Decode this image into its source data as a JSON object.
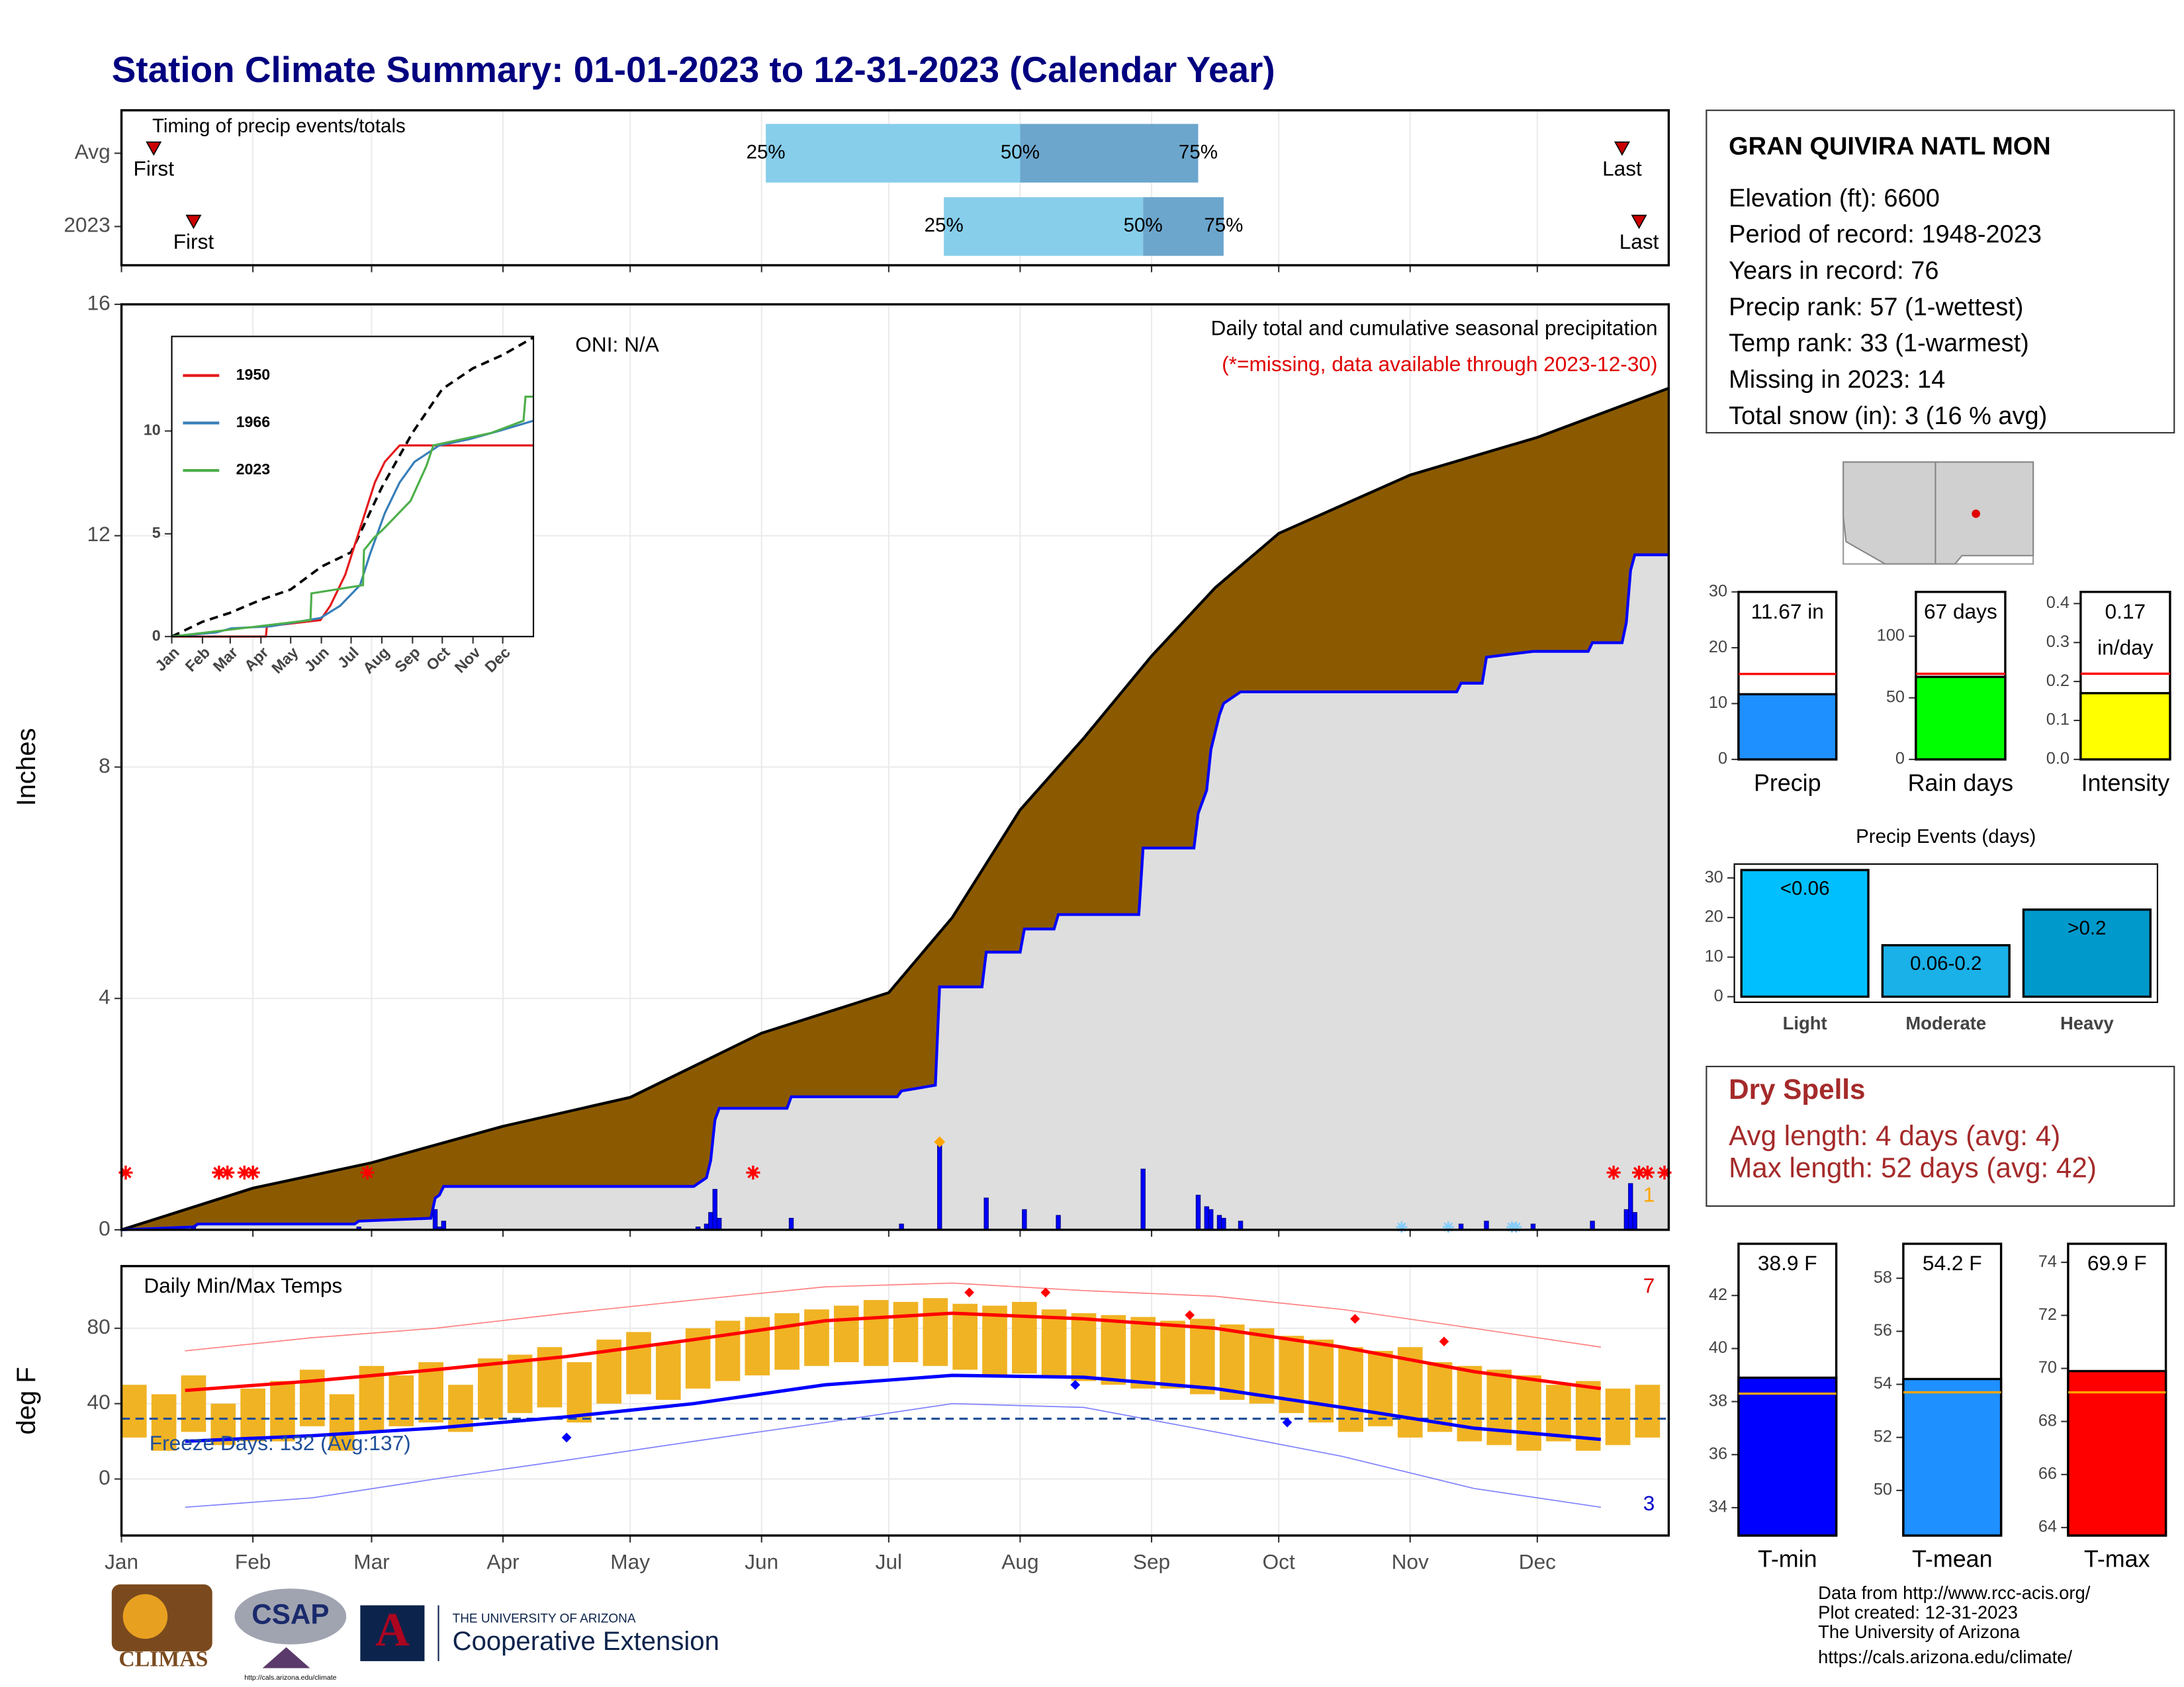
{
  "title": "Station Climate Summary: 01-01-2023 to 12-31-2023 (Calendar Year)",
  "station": {
    "name": "GRAN QUIVIRA NATL MON",
    "lines": [
      "Elevation (ft): 6600",
      "Period of record: 1948-2023",
      "Years in record: 76",
      "Precip rank: 57 (1-wettest)",
      "Temp rank: 33 (1-warmest)",
      "Missing in 2023: 14",
      "Total snow (in): 3 (16 % avg)"
    ]
  },
  "dry_spells": {
    "title": "Dry Spells",
    "lines": [
      "Avg length: 4 days (avg: 4)",
      "Max length: 52 days (avg: 42)"
    ]
  },
  "credits": [
    "Data from http://www.rcc-acis.org/",
    "Plot created: 12-31-2023",
    "The University of Arizona",
    "https://cals.arizona.edu/climate/"
  ],
  "logos": {
    "climas": "CLIMAS",
    "csap": "CSAP",
    "csap_url": "http://cals.arizona.edu/climate",
    "ua_mark": "A",
    "ua": "THE UNIVERSITY OF ARIZONA",
    "coop": "Cooperative Extension"
  },
  "chart_data": [
    {
      "type": "timeline",
      "title": "Timing of precip events/totals",
      "categories": [
        "Avg",
        "2023"
      ],
      "first": [
        7.6,
        17
      ],
      "p25": [
        152,
        194
      ],
      "p50": [
        212,
        241
      ],
      "p75": [
        254,
        260
      ],
      "last": [
        354,
        358
      ],
      "labels": {
        "first": "First",
        "last": "Last",
        "p25": "25%",
        "p50": "50%",
        "p75": "75%"
      },
      "light_color": "#87ceeb",
      "dark_color": "#6ca6cd",
      "marker_color": "#cc0000",
      "xlim": [
        0,
        365
      ],
      "xticks": [
        0,
        31,
        59,
        90,
        120,
        151,
        181,
        212,
        243,
        273,
        304,
        334
      ],
      "grid": true
    },
    {
      "type": "area",
      "title": "Daily total and cumulative seasonal precipitation",
      "subtitle": "(*=missing, data available through 2023-12-30)",
      "annotation": "ONI: N/A",
      "corner_label": "1",
      "ylabel": "Inches",
      "xlim": [
        0,
        365
      ],
      "xticks": [
        0,
        31,
        59,
        90,
        120,
        151,
        181,
        212,
        243,
        273,
        304,
        334
      ],
      "ylim": [
        0,
        16
      ],
      "yticks": [
        0,
        4,
        8,
        12,
        16
      ],
      "grid": true,
      "average": {
        "color": "#8b5a00",
        "x": [
          0,
          31,
          59,
          90,
          120,
          151,
          181,
          196,
          212,
          227,
          243,
          258,
          273,
          304,
          334,
          365
        ],
        "values": [
          0,
          0.72,
          1.16,
          1.79,
          2.29,
          3.4,
          4.1,
          5.4,
          7.26,
          8.5,
          9.92,
          11.1,
          12.04,
          13.05,
          13.7,
          14.55
        ]
      },
      "observed": {
        "color": "#0000ff",
        "fill": "#dedede",
        "x": [
          0,
          17,
          18,
          55,
          56,
          73,
          74,
          75,
          76,
          135,
          136,
          138,
          139,
          140,
          141,
          157,
          158,
          183,
          184,
          192,
          193,
          203,
          204,
          212,
          213,
          220,
          221,
          240,
          241,
          253,
          254,
          256,
          257,
          259,
          260,
          264,
          315,
          316,
          321,
          322,
          333,
          346,
          347,
          354,
          355,
          356,
          357,
          365
        ],
        "values": [
          0,
          0.05,
          0.1,
          0.1,
          0.15,
          0.2,
          0.55,
          0.6,
          0.75,
          0.75,
          0.8,
          0.9,
          1.2,
          1.9,
          2.1,
          2.1,
          2.3,
          2.3,
          2.4,
          2.5,
          4.2,
          4.2,
          4.8,
          4.8,
          5.2,
          5.2,
          5.45,
          5.45,
          6.6,
          6.6,
          7.2,
          7.6,
          8.3,
          8.9,
          9.1,
          9.3,
          9.3,
          9.45,
          9.45,
          9.9,
          10.0,
          10.0,
          10.15,
          10.15,
          10.5,
          11.4,
          11.67,
          11.67
        ]
      },
      "daily": {
        "color": "#0000ff",
        "x": [
          17,
          56,
          74,
          75,
          76,
          136,
          138,
          139,
          140,
          141,
          158,
          184,
          193,
          204,
          213,
          221,
          241,
          254,
          256,
          257,
          259,
          260,
          264,
          316,
          322,
          333,
          347,
          355,
          356,
          357
        ],
        "values": [
          0.05,
          0.05,
          0.35,
          0.05,
          0.15,
          0.05,
          0.1,
          0.3,
          0.7,
          0.2,
          0.2,
          0.1,
          1.52,
          0.55,
          0.35,
          0.25,
          1.05,
          0.6,
          0.4,
          0.35,
          0.25,
          0.2,
          0.15,
          0.1,
          0.15,
          0.1,
          0.15,
          0.35,
          0.8,
          0.3
        ]
      },
      "record": {
        "color": "#ffa500",
        "x": [
          193
        ],
        "values": [
          1.52
        ]
      },
      "missing_x": [
        1,
        23,
        25,
        29,
        31,
        58,
        149,
        352,
        358,
        360,
        364
      ],
      "missing_color": "#ff0000",
      "snow_x": [
        302,
        313,
        328,
        329
      ],
      "snow_color": "#87cefa"
    },
    {
      "type": "line",
      "xlim": [
        0,
        365
      ],
      "ylim": [
        0,
        14.6
      ],
      "yticks": [
        0,
        5,
        10
      ],
      "xticks": [
        {
          "value": 0,
          "label": "Jan"
        },
        {
          "value": 31,
          "label": "Feb"
        },
        {
          "value": 59,
          "label": "Mar"
        },
        {
          "value": 90,
          "label": "Apr"
        },
        {
          "value": 120,
          "label": "May"
        },
        {
          "value": 151,
          "label": "Jun"
        },
        {
          "value": 181,
          "label": "Jul"
        },
        {
          "value": 212,
          "label": "Aug"
        },
        {
          "value": 243,
          "label": "Sep"
        },
        {
          "value": 273,
          "label": "Oct"
        },
        {
          "value": 304,
          "label": "Nov"
        },
        {
          "value": 334,
          "label": "Dec"
        }
      ],
      "series": [
        {
          "name": "1950",
          "color": "#e41a1c",
          "x": [
            0,
            95,
            96,
            150,
            160,
            175,
            185,
            195,
            205,
            215,
            230,
            260,
            365
          ],
          "values": [
            0,
            0,
            0.5,
            0.8,
            1.5,
            3,
            4.5,
            6,
            7.5,
            8.5,
            9.3,
            9.3,
            9.3
          ]
        },
        {
          "name": "1966",
          "color": "#377eb8",
          "x": [
            0,
            45,
            60,
            100,
            150,
            170,
            190,
            200,
            215,
            230,
            245,
            270,
            300,
            330,
            365
          ],
          "values": [
            0,
            0.2,
            0.4,
            0.5,
            0.9,
            1.5,
            2.5,
            4,
            6,
            7.5,
            8.5,
            9.3,
            9.6,
            10,
            10.5
          ]
        },
        {
          "name": "2023",
          "color": "#4daf4a",
          "x": [
            0,
            140,
            141,
            193,
            194,
            204,
            213,
            241,
            257,
            264,
            322,
            355,
            357,
            365
          ],
          "values": [
            0,
            0.8,
            2.1,
            2.5,
            4.2,
            4.8,
            5.2,
            6.6,
            8.3,
            9.3,
            9.9,
            10.5,
            11.67,
            11.67
          ]
        }
      ],
      "average": {
        "color": "#000000",
        "x": [
          0,
          31,
          59,
          90,
          120,
          151,
          181,
          212,
          243,
          273,
          304,
          334,
          365
        ],
        "values": [
          0,
          0.72,
          1.16,
          1.79,
          2.29,
          3.4,
          4.1,
          7.26,
          9.92,
          12.04,
          13.05,
          13.7,
          14.55
        ]
      }
    },
    {
      "type": "range",
      "title": "Daily Min/Max Temps",
      "annotation": "Freeze Days: 132 (Avg:137)",
      "high_label": "7",
      "low_label": "3",
      "ylabel": "deg F",
      "xlim": [
        0,
        365
      ],
      "ylim": [
        -30,
        113
      ],
      "yticks": [
        0,
        40,
        80
      ],
      "grid": true,
      "xticks": [
        {
          "value": 0,
          "label": "Jan"
        },
        {
          "value": 31,
          "label": "Feb"
        },
        {
          "value": 59,
          "label": "Mar"
        },
        {
          "value": 90,
          "label": "Apr"
        },
        {
          "value": 120,
          "label": "May"
        },
        {
          "value": 151,
          "label": "Jun"
        },
        {
          "value": 181,
          "label": "Jul"
        },
        {
          "value": 212,
          "label": "Aug"
        },
        {
          "value": 243,
          "label": "Sep"
        },
        {
          "value": 273,
          "label": "Oct"
        },
        {
          "value": 304,
          "label": "Nov"
        },
        {
          "value": 334,
          "label": "Dec"
        }
      ],
      "bar_color": "#f0b323",
      "x": [
        3,
        10,
        17,
        24,
        31,
        38,
        45,
        52,
        59,
        66,
        73,
        80,
        87,
        94,
        101,
        108,
        115,
        122,
        129,
        136,
        143,
        150,
        157,
        164,
        171,
        178,
        185,
        192,
        199,
        206,
        213,
        220,
        227,
        234,
        241,
        248,
        255,
        262,
        269,
        276,
        283,
        290,
        297,
        304,
        311,
        318,
        325,
        332,
        339,
        346,
        353,
        360
      ],
      "max": [
        50,
        45,
        55,
        40,
        48,
        52,
        58,
        45,
        60,
        55,
        62,
        50,
        64,
        66,
        70,
        62,
        74,
        78,
        72,
        80,
        84,
        86,
        88,
        90,
        92,
        95,
        94,
        96,
        93,
        92,
        94,
        90,
        88,
        87,
        86,
        84,
        85,
        82,
        80,
        76,
        74,
        70,
        68,
        70,
        62,
        60,
        58,
        55,
        50,
        52,
        48,
        50
      ],
      "min": [
        22,
        15,
        25,
        18,
        20,
        20,
        28,
        15,
        25,
        28,
        30,
        25,
        32,
        35,
        38,
        30,
        40,
        45,
        42,
        48,
        52,
        55,
        58,
        60,
        62,
        60,
        62,
        60,
        58,
        55,
        56,
        55,
        52,
        50,
        48,
        48,
        45,
        42,
        40,
        35,
        30,
        25,
        28,
        22,
        25,
        20,
        18,
        15,
        20,
        15,
        18,
        22
      ],
      "avg_max": {
        "color": "#ff0000",
        "x": [
          15,
          45,
          74,
          105,
          135,
          166,
          196,
          227,
          258,
          288,
          319,
          349
        ],
        "values": [
          47,
          52,
          58,
          65,
          74,
          84,
          88,
          85,
          80,
          70,
          57,
          48
        ]
      },
      "avg_min": {
        "color": "#0000ff",
        "x": [
          15,
          45,
          74,
          105,
          135,
          166,
          196,
          227,
          258,
          288,
          319,
          349
        ],
        "values": [
          20,
          23,
          27,
          33,
          40,
          50,
          55,
          54,
          48,
          38,
          27,
          21
        ]
      },
      "record_high": {
        "color": "#ff8080",
        "x": [
          15,
          45,
          74,
          105,
          135,
          166,
          196,
          227,
          258,
          288,
          319,
          349
        ],
        "values": [
          68,
          75,
          80,
          88,
          95,
          102,
          104,
          100,
          97,
          90,
          80,
          70
        ]
      },
      "record_low": {
        "color": "#8080ff",
        "x": [
          15,
          45,
          74,
          105,
          135,
          166,
          196,
          227,
          258,
          288,
          319,
          349
        ],
        "values": [
          -15,
          -10,
          0,
          10,
          20,
          30,
          40,
          38,
          25,
          12,
          -5,
          -15
        ]
      },
      "record_high_days": {
        "color": "#ff0000",
        "x": [
          200,
          218,
          252,
          291,
          312
        ],
        "values": [
          99,
          99,
          87,
          85,
          73
        ]
      },
      "record_low_days": {
        "color": "#0000ff",
        "x": [
          105,
          225,
          275
        ],
        "values": [
          22,
          50,
          30
        ]
      },
      "freeze_line": 32,
      "freeze_color": "#1f4e99"
    },
    {
      "type": "bar",
      "categories": [
        "Precip"
      ],
      "values": [
        11.67
      ],
      "value_labels": [
        "11.67 in"
      ],
      "avg_line": 15.3,
      "avg_color": "#ff0000",
      "color": "#1e90ff",
      "ylim": [
        0,
        30
      ],
      "yticks": [
        0,
        10,
        20,
        30
      ]
    },
    {
      "type": "bar",
      "categories": [
        "Rain days"
      ],
      "values": [
        67
      ],
      "value_labels": [
        "67 days"
      ],
      "avg_line": 69.5,
      "avg_color": "#ff0000",
      "color": "#00ff00",
      "ylim": [
        0,
        136
      ],
      "yticks": [
        0,
        50,
        100
      ]
    },
    {
      "type": "bar",
      "categories": [
        "Intensity"
      ],
      "values": [
        0.17
      ],
      "value_labels": [
        "0.17\nin/day"
      ],
      "avg_line": 0.22,
      "avg_color": "#ff0000",
      "color": "#ffff00",
      "ylim": [
        0,
        0.43
      ],
      "yticks": [
        {
          "value": 0,
          "label": "0.0"
        },
        {
          "value": 0.1,
          "label": "0.1"
        },
        {
          "value": 0.2,
          "label": "0.2"
        },
        {
          "value": 0.3,
          "label": "0.3"
        },
        {
          "value": 0.4,
          "label": "0.4"
        }
      ]
    },
    {
      "type": "bar",
      "title": "Precip Events (days)",
      "categories": [
        "Light",
        "Moderate",
        "Heavy"
      ],
      "values": [
        32,
        13,
        22
      ],
      "bar_labels": [
        "<0.06",
        "0.06-0.2",
        ">0.2"
      ],
      "colors": [
        "#00bfff",
        "#1ab0e8",
        "#0099cc"
      ],
      "ylim": [
        0,
        33.5
      ],
      "yticks": [
        0,
        10,
        20,
        30
      ]
    },
    {
      "type": "bar",
      "categories": [
        "T-min"
      ],
      "values": [
        38.9
      ],
      "value_labels": [
        "38.9 F"
      ],
      "avg_line": 38.3,
      "avg_color": "#ffa500",
      "color": "#0000ff",
      "ylim": [
        32.95,
        43.95
      ],
      "yticks": [
        34,
        36,
        38,
        40,
        42
      ]
    },
    {
      "type": "bar",
      "categories": [
        "T-mean"
      ],
      "values": [
        54.2
      ],
      "value_labels": [
        "54.2 F"
      ],
      "avg_line": 53.7,
      "avg_color": "#ffa500",
      "color": "#1e90ff",
      "ylim": [
        48.3,
        59.3
      ],
      "yticks": [
        50,
        52,
        54,
        56,
        58
      ]
    },
    {
      "type": "bar",
      "categories": [
        "T-max"
      ],
      "values": [
        69.9
      ],
      "value_labels": [
        "69.9 F"
      ],
      "avg_line": 69.1,
      "avg_color": "#ffa500",
      "color": "#ff0000",
      "ylim": [
        63.7,
        74.7
      ],
      "yticks": [
        64,
        66,
        68,
        70,
        72,
        74
      ]
    }
  ]
}
